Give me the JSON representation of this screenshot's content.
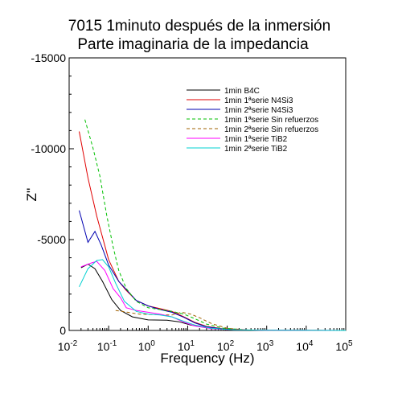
{
  "chart_data": {
    "type": "line",
    "title": "7015 1minuto después de la inmersión",
    "subtitle": "Parte imaginaria de la impedancia",
    "xlabel": "Frequency (Hz)",
    "ylabel": "Z''",
    "xscale": "log",
    "xlim": [
      0.01,
      100000
    ],
    "ylim": [
      0,
      -15000
    ],
    "y_inverted": true,
    "x_ticks": [
      {
        "value": 0.01,
        "base": "10",
        "exp": "-2"
      },
      {
        "value": 0.1,
        "base": "10",
        "exp": "-1"
      },
      {
        "value": 1,
        "base": "10",
        "exp": "0"
      },
      {
        "value": 10,
        "base": "10",
        "exp": "1"
      },
      {
        "value": 100,
        "base": "10",
        "exp": "2"
      },
      {
        "value": 1000,
        "base": "10",
        "exp": "3"
      },
      {
        "value": 10000,
        "base": "10",
        "exp": "4"
      },
      {
        "value": 100000,
        "base": "10",
        "exp": "5"
      }
    ],
    "y_ticks": [
      {
        "value": 0,
        "label": "0"
      },
      {
        "value": -5000,
        "label": "-5000"
      },
      {
        "value": -10000,
        "label": "-10000"
      },
      {
        "value": -15000,
        "label": "-15000"
      }
    ],
    "legend_position": "top-right",
    "grid": false,
    "series": [
      {
        "name": "1min B4C",
        "color": "#000000",
        "dash": "solid",
        "points": [
          [
            0.02,
            -3450
          ],
          [
            0.03,
            -3650
          ],
          [
            0.045,
            -3400
          ],
          [
            0.07,
            -2700
          ],
          [
            0.12,
            -1700
          ],
          [
            0.2,
            -1100
          ],
          [
            0.4,
            -750
          ],
          [
            1,
            -580
          ],
          [
            3,
            -560
          ],
          [
            6,
            -480
          ],
          [
            12,
            -300
          ],
          [
            30,
            -150
          ],
          [
            100,
            -50
          ],
          [
            300,
            -15
          ],
          [
            1000,
            -5
          ],
          [
            100000,
            0
          ]
        ]
      },
      {
        "name": "1min 1ªserie N4Si3",
        "color": "#e00000",
        "dash": "solid",
        "points": [
          [
            0.018,
            -10950
          ],
          [
            0.03,
            -8400
          ],
          [
            0.05,
            -6300
          ],
          [
            0.1,
            -3900
          ],
          [
            0.18,
            -2700
          ],
          [
            0.28,
            -2200
          ],
          [
            0.5,
            -1650
          ],
          [
            1,
            -1350
          ],
          [
            2,
            -1200
          ],
          [
            4,
            -1050
          ],
          [
            8,
            -750
          ],
          [
            15,
            -450
          ],
          [
            30,
            -220
          ],
          [
            80,
            -90
          ],
          [
            300,
            -25
          ],
          [
            1000,
            -8
          ],
          [
            100000,
            0
          ]
        ]
      },
      {
        "name": "1min 2ªserie N4Si3",
        "color": "#0000b0",
        "dash": "solid",
        "points": [
          [
            0.018,
            -6600
          ],
          [
            0.03,
            -4850
          ],
          [
            0.045,
            -5450
          ],
          [
            0.065,
            -4700
          ],
          [
            0.1,
            -3600
          ],
          [
            0.18,
            -2700
          ],
          [
            0.28,
            -2250
          ],
          [
            0.5,
            -1650
          ],
          [
            1,
            -1350
          ],
          [
            2,
            -1150
          ],
          [
            4,
            -1000
          ],
          [
            8,
            -720
          ],
          [
            15,
            -420
          ],
          [
            30,
            -200
          ],
          [
            80,
            -80
          ],
          [
            300,
            -25
          ],
          [
            1000,
            -8
          ],
          [
            100000,
            0
          ]
        ]
      },
      {
        "name": "1min 1ªserie Sin refuerzos",
        "color": "#00c000",
        "dash": "dashed",
        "points": [
          [
            0.025,
            -11600
          ],
          [
            0.04,
            -10050
          ],
          [
            0.06,
            -8500
          ],
          [
            0.09,
            -6300
          ],
          [
            0.13,
            -4600
          ],
          [
            0.18,
            -3300
          ],
          [
            0.28,
            -2300
          ],
          [
            0.5,
            -1600
          ],
          [
            1,
            -1250
          ],
          [
            2,
            -1150
          ],
          [
            4,
            -1050
          ],
          [
            8,
            -900
          ],
          [
            15,
            -650
          ],
          [
            30,
            -350
          ],
          [
            80,
            -130
          ],
          [
            300,
            -30
          ],
          [
            1000,
            -8
          ],
          [
            100000,
            0
          ]
        ]
      },
      {
        "name": "1min 2ªserie Sin refuerzos",
        "color": "#a06000",
        "dash": "dashed",
        "points": [
          [
            0.15,
            -1100
          ],
          [
            0.3,
            -1000
          ],
          [
            0.6,
            -900
          ],
          [
            1,
            -880
          ],
          [
            2,
            -860
          ],
          [
            4,
            -850
          ],
          [
            7,
            -1000
          ],
          [
            12,
            -900
          ],
          [
            20,
            -700
          ],
          [
            40,
            -380
          ],
          [
            100,
            -120
          ],
          [
            300,
            -30
          ],
          [
            1000,
            -8
          ],
          [
            100000,
            0
          ]
        ]
      },
      {
        "name": "1min 1ªserie TiB2",
        "color": "#ff00ff",
        "dash": "solid",
        "points": [
          [
            0.02,
            -3500
          ],
          [
            0.035,
            -3700
          ],
          [
            0.05,
            -3800
          ],
          [
            0.08,
            -3300
          ],
          [
            0.13,
            -2300
          ],
          [
            0.2,
            -1800
          ],
          [
            0.28,
            -1250
          ],
          [
            0.5,
            -1100
          ],
          [
            1,
            -1000
          ],
          [
            2,
            -900
          ],
          [
            4,
            -750
          ],
          [
            8,
            -450
          ],
          [
            15,
            -250
          ],
          [
            40,
            -100
          ],
          [
            150,
            -30
          ],
          [
            1000,
            -8
          ],
          [
            100000,
            0
          ]
        ]
      },
      {
        "name": "1min 2ªserie TiB2",
        "color": "#00d0d0",
        "dash": "solid",
        "points": [
          [
            0.018,
            -2400
          ],
          [
            0.03,
            -3400
          ],
          [
            0.05,
            -3850
          ],
          [
            0.07,
            -3900
          ],
          [
            0.1,
            -3500
          ],
          [
            0.15,
            -2600
          ],
          [
            0.25,
            -1600
          ],
          [
            0.5,
            -1050
          ],
          [
            1,
            -900
          ],
          [
            2,
            -850
          ],
          [
            4,
            -750
          ],
          [
            8,
            -500
          ],
          [
            15,
            -300
          ],
          [
            40,
            -120
          ],
          [
            150,
            -35
          ],
          [
            1000,
            -8
          ],
          [
            100000,
            0
          ]
        ]
      }
    ]
  }
}
